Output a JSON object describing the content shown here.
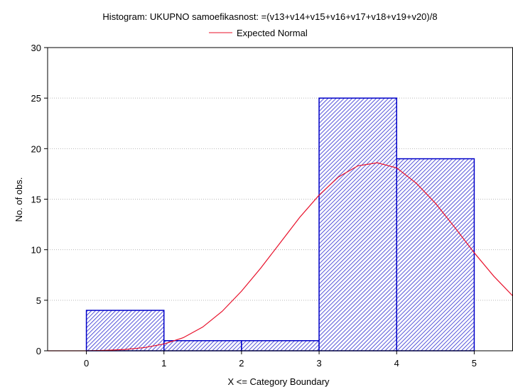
{
  "chart_data": {
    "type": "bar",
    "title": "Histogram: UKUPNO samoefikasnost: =(v13+v14+v15+v16+v17+v18+v19+v20)/8",
    "xlabel": "X <= Category Boundary",
    "ylabel": "No. of obs.",
    "xlim": [
      -0.5,
      5.5
    ],
    "ylim": [
      0,
      30
    ],
    "x_ticks": [
      "0",
      "1",
      "2",
      "3",
      "4",
      "5"
    ],
    "y_ticks": [
      "0",
      "5",
      "10",
      "15",
      "20",
      "25",
      "30"
    ],
    "grid": true,
    "legend": {
      "position": "top-center",
      "entries": [
        "Expected Normal"
      ]
    },
    "bars": [
      {
        "x0": 0,
        "x1": 1,
        "value": 4
      },
      {
        "x0": 1,
        "x1": 2,
        "value": 1
      },
      {
        "x0": 2,
        "x1": 3,
        "value": 1
      },
      {
        "x0": 3,
        "x1": 4,
        "value": 25
      },
      {
        "x0": 4,
        "x1": 5,
        "value": 19
      }
    ],
    "series": [
      {
        "name": "Expected Normal",
        "type": "line",
        "color": "#e8102a",
        "x": [
          -0.5,
          0,
          0.25,
          0.5,
          0.75,
          1,
          1.25,
          1.5,
          1.75,
          2,
          2.25,
          2.5,
          2.75,
          3,
          3.25,
          3.5,
          3.75,
          4,
          4.25,
          4.5,
          4.75,
          5,
          5.25,
          5.5
        ],
        "values": [
          0.0,
          0.0,
          0.05,
          0.13,
          0.32,
          0.67,
          1.3,
          2.35,
          3.9,
          5.9,
          8.2,
          10.7,
          13.2,
          15.4,
          17.2,
          18.3,
          18.6,
          18.1,
          16.6,
          14.6,
          12.2,
          9.7,
          7.4,
          5.4
        ]
      }
    ],
    "bar_fill": "#2b2bd0",
    "bar_stroke": "#0000c8"
  }
}
